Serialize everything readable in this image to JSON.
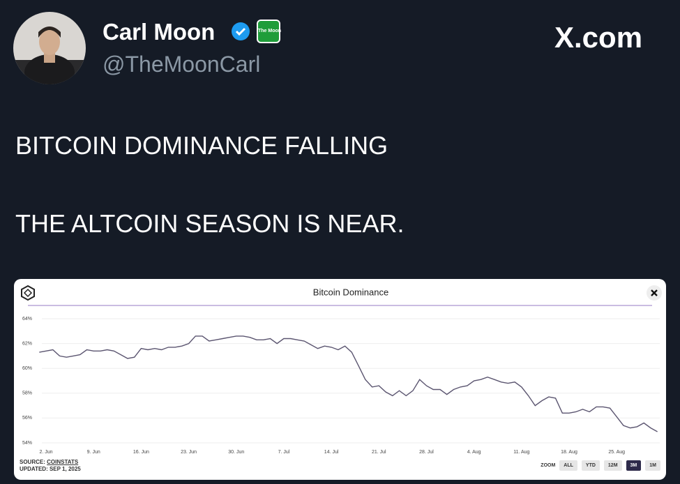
{
  "tweet": {
    "name": "Carl Moon",
    "handle": "@TheMoonCarl",
    "site": "X.com",
    "badge": "The Moon",
    "lines": [
      "BITCOIN DOMINANCE FALLING",
      "THE ALTCOIN SEASON IS NEAR."
    ]
  },
  "chart_data": {
    "type": "line",
    "title": "Bitcoin Dominance",
    "categories": [
      null,
      "2. Jun",
      null,
      null,
      null,
      null,
      null,
      null,
      "9. Jun",
      null,
      null,
      null,
      null,
      null,
      null,
      "16. Jun",
      null,
      null,
      null,
      null,
      null,
      null,
      "23. Jun",
      null,
      null,
      null,
      null,
      null,
      null,
      "30. Jun",
      null,
      null,
      null,
      null,
      null,
      null,
      "7. Jul",
      null,
      null,
      null,
      null,
      null,
      null,
      "14. Jul",
      null,
      null,
      null,
      null,
      null,
      null,
      "21. Jul",
      null,
      null,
      null,
      null,
      null,
      null,
      "28. Jul",
      null,
      null,
      null,
      null,
      null,
      null,
      "4. Aug",
      null,
      null,
      null,
      null,
      null,
      null,
      "11. Aug",
      null,
      null,
      null,
      null,
      null,
      null,
      "18. Aug",
      null,
      null,
      null,
      null,
      null,
      null,
      "25. Aug",
      null,
      null,
      null,
      null,
      null,
      null
    ],
    "series": [
      {
        "name": "Bitcoin Dominance",
        "color": "#5b5570",
        "values": [
          61.3,
          61.4,
          61.5,
          61.0,
          60.9,
          61.0,
          61.1,
          61.5,
          61.4,
          61.4,
          61.5,
          61.4,
          61.1,
          60.8,
          60.9,
          61.6,
          61.5,
          61.6,
          61.5,
          61.7,
          61.7,
          61.8,
          62.0,
          62.6,
          62.6,
          62.2,
          62.3,
          62.4,
          62.5,
          62.6,
          62.6,
          62.5,
          62.3,
          62.3,
          62.4,
          62.0,
          62.4,
          62.4,
          62.3,
          62.2,
          61.9,
          61.6,
          61.8,
          61.7,
          61.5,
          61.8,
          61.3,
          60.2,
          59.1,
          58.5,
          58.6,
          58.1,
          57.8,
          58.2,
          57.8,
          58.2,
          59.1,
          58.6,
          58.3,
          58.3,
          57.9,
          58.3,
          58.5,
          58.6,
          59.0,
          59.1,
          59.3,
          59.1,
          58.9,
          58.8,
          58.9,
          58.5,
          57.8,
          57.0,
          57.4,
          57.7,
          57.6,
          56.4,
          56.4,
          56.5,
          56.7,
          56.5,
          56.9,
          56.9,
          56.8,
          56.1,
          55.4,
          55.2,
          55.3,
          55.6,
          55.2,
          54.9
        ]
      }
    ],
    "ylim": [
      54,
      64
    ],
    "yticks": [
      {
        "value": 54,
        "label": "54%"
      },
      {
        "value": 56,
        "label": "56%"
      },
      {
        "value": 58,
        "label": "58%"
      },
      {
        "value": 60,
        "label": "60%"
      },
      {
        "value": 62,
        "label": "62%"
      },
      {
        "value": 64,
        "label": "64%"
      }
    ],
    "grid": true,
    "source_label": "SOURCE:",
    "source": "COINSTATS",
    "updated": "UPDATED: SEP 1, 2025",
    "zoom_label": "ZOOM",
    "zoom_options": [
      "ALL",
      "YTD",
      "12M",
      "3M",
      "1M"
    ]
  }
}
